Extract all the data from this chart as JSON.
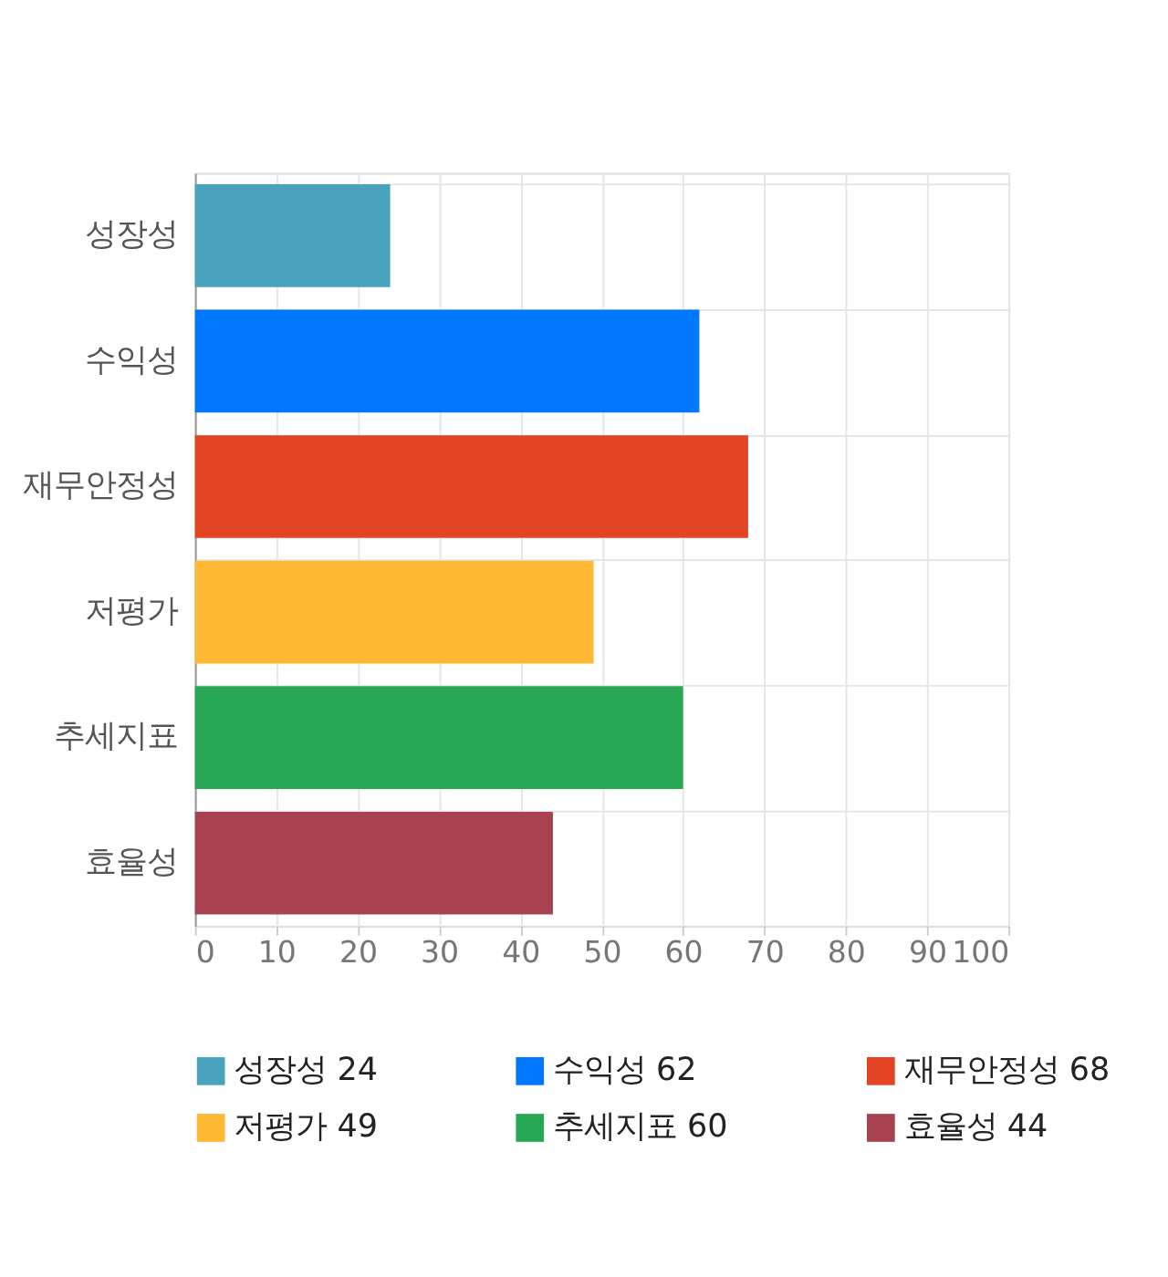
{
  "chart_data": {
    "type": "bar",
    "orientation": "horizontal",
    "categories": [
      "성장성",
      "수익성",
      "재무안정성",
      "저평가",
      "추세지표",
      "효율성"
    ],
    "series": [
      {
        "name": "성장성 24",
        "color": "#4aa3bd",
        "values": [
          24,
          null,
          null,
          null,
          null,
          null
        ]
      },
      {
        "name": "수익성 62",
        "color": "#0077ff",
        "values": [
          null,
          62,
          null,
          null,
          null,
          null
        ]
      },
      {
        "name": "재무안정성 68",
        "color": "#e24424",
        "values": [
          null,
          null,
          68,
          null,
          null,
          null
        ]
      },
      {
        "name": "저평가 49",
        "color": "#ffb833",
        "values": [
          null,
          null,
          null,
          49,
          null,
          null
        ]
      },
      {
        "name": "추세지표 60",
        "color": "#28a754",
        "values": [
          null,
          null,
          null,
          null,
          60,
          null
        ]
      },
      {
        "name": "효율성 44",
        "color": "#a84150",
        "values": [
          null,
          null,
          null,
          null,
          null,
          44
        ]
      }
    ],
    "xlim": [
      0,
      100
    ],
    "xticks": [
      0,
      10,
      20,
      30,
      40,
      50,
      60,
      70,
      80,
      90,
      100
    ],
    "grid": true,
    "legend": "bottom"
  }
}
